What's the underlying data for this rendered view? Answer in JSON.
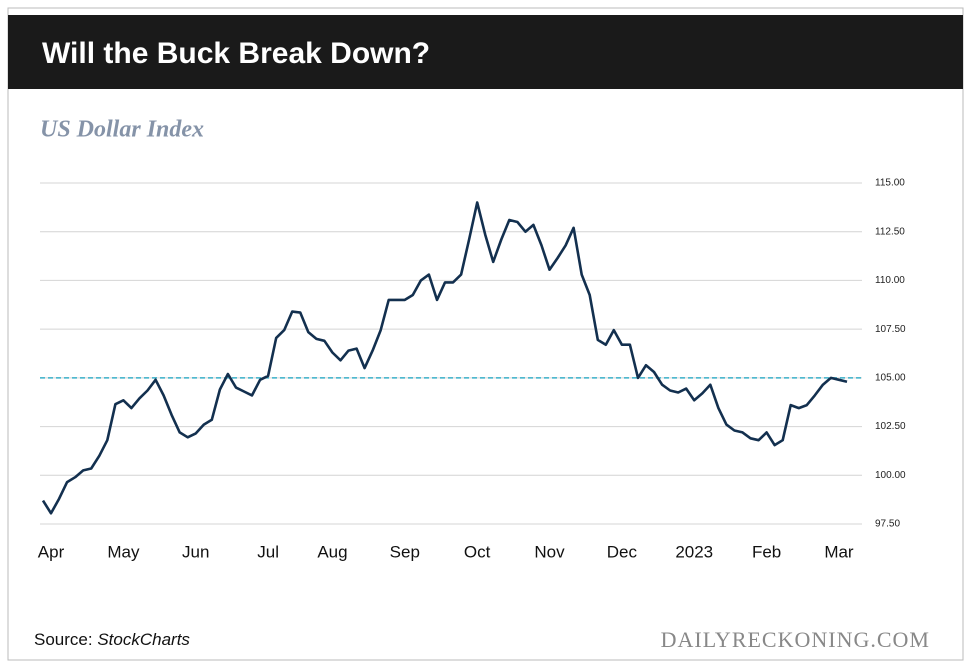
{
  "chart_data": {
    "type": "line",
    "title": "Will the Buck Break Down?",
    "subtitle": "US Dollar Index",
    "source_label": "Source:",
    "source_name": "StockCharts",
    "brand": "DAILYRECKONING.COM",
    "categories": [
      null,
      "Apr",
      null,
      null,
      null,
      null,
      null,
      null,
      null,
      null,
      "May",
      null,
      null,
      null,
      null,
      null,
      null,
      null,
      null,
      "Jun",
      null,
      null,
      null,
      null,
      null,
      null,
      null,
      null,
      "Jul",
      null,
      null,
      null,
      null,
      null,
      null,
      null,
      "Aug",
      null,
      null,
      null,
      null,
      null,
      null,
      null,
      null,
      "Sep",
      null,
      null,
      null,
      null,
      null,
      null,
      null,
      null,
      "Oct",
      null,
      null,
      null,
      null,
      null,
      null,
      null,
      null,
      "Nov",
      null,
      null,
      null,
      null,
      null,
      null,
      null,
      null,
      "Dec",
      null,
      null,
      null,
      null,
      null,
      null,
      null,
      null,
      "2023",
      null,
      null,
      null,
      null,
      null,
      null,
      null,
      null,
      "Feb",
      null,
      null,
      null,
      null,
      null,
      null,
      null,
      null,
      "Mar",
      null
    ],
    "series": [
      {
        "name": "US Dollar Index",
        "color": "#13304f",
        "values": [
          98.7,
          98.05,
          98.8,
          99.65,
          99.9,
          100.25,
          100.35,
          101.0,
          101.8,
          103.65,
          103.85,
          103.45,
          103.95,
          104.35,
          104.9,
          104.1,
          103.1,
          102.2,
          101.95,
          102.15,
          102.6,
          102.85,
          104.4,
          105.2,
          104.5,
          104.3,
          104.1,
          104.9,
          105.1,
          107.05,
          107.45,
          108.4,
          108.35,
          107.35,
          107.0,
          106.9,
          106.3,
          105.9,
          106.4,
          106.5,
          105.5,
          106.4,
          107.45,
          109.0,
          109.0,
          109.0,
          109.25,
          110.0,
          110.3,
          109.0,
          109.9,
          109.9,
          110.3,
          112.1,
          114.0,
          112.35,
          110.95,
          112.1,
          113.1,
          113.0,
          112.5,
          112.85,
          111.8,
          110.55,
          111.15,
          111.8,
          112.7,
          110.3,
          109.25,
          106.95,
          106.7,
          107.45,
          106.7,
          106.7,
          105.0,
          105.65,
          105.3,
          104.65,
          104.35,
          104.25,
          104.45,
          103.85,
          104.2,
          104.65,
          103.45,
          102.6,
          102.3,
          102.2,
          101.9,
          101.8,
          102.2,
          101.55,
          101.8,
          103.6,
          103.45,
          103.6,
          104.1,
          104.65,
          105.0,
          104.9,
          104.8
        ]
      }
    ],
    "reference_line": {
      "value": 105,
      "color": "#3ab0c9"
    },
    "ylim": [
      97.5,
      115
    ],
    "yticks": [
      {
        "value": 97.5,
        "label": "97.50"
      },
      {
        "value": 100,
        "label": "100.00"
      },
      {
        "value": 102.5,
        "label": "102.50"
      },
      {
        "value": 105,
        "label": "105.00"
      },
      {
        "value": 107.5,
        "label": "107.50"
      },
      {
        "value": 110,
        "label": "110.00"
      },
      {
        "value": 112.5,
        "label": "112.50"
      },
      {
        "value": 115,
        "label": "115.00"
      }
    ],
    "grid": true
  }
}
